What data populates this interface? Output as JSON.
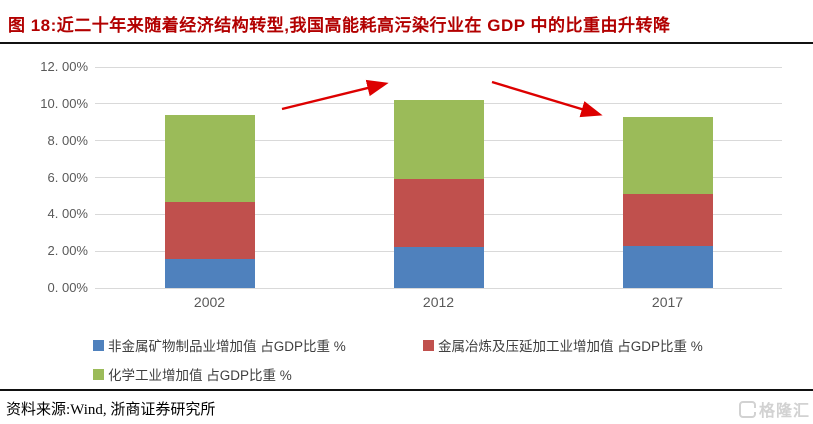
{
  "header": {
    "title": "图 18:近二十年来随着经济结构转型,我国高能耗高污染行业在 GDP 中的比重由升转降"
  },
  "footer": {
    "source_label": "资料来源:Wind, 浙商证券研究所",
    "logo_text": "格隆汇"
  },
  "colors": {
    "title_red": "#b20000",
    "arrow_red": "#dd0000",
    "axis_text": "#595959",
    "gridline": "#d9d9d9"
  },
  "chart_data": {
    "type": "bar",
    "stacked": true,
    "title": "",
    "xlabel": "",
    "ylabel": "",
    "categories": [
      "2002",
      "2012",
      "2017"
    ],
    "series": [
      {
        "name": "非金属矿物制品业增加值 占GDP比重 %",
        "color": "#4f81bd",
        "values": [
          1.55,
          2.2,
          2.3
        ]
      },
      {
        "name": "金属冶炼及压延加工业增加值 占GDP比重 %",
        "color": "#c0504d",
        "values": [
          3.1,
          3.7,
          2.8
        ]
      },
      {
        "name": "化学工业增加值 占GDP比重 %",
        "color": "#9bbb59",
        "values": [
          4.75,
          4.3,
          4.2
        ]
      }
    ],
    "stack_totals": [
      9.4,
      10.2,
      9.3
    ],
    "ylim": [
      0,
      12
    ],
    "ytick_step": 2,
    "ytick_labels": [
      "0. 00%",
      "2. 00%",
      "4. 00%",
      "6. 00%",
      "8. 00%",
      "10. 00%",
      "12. 00%"
    ],
    "grid": true,
    "legend_position": "bottom",
    "annotations": [
      {
        "type": "arrow",
        "direction": "up",
        "meaning": "share rises from 2002 to 2012"
      },
      {
        "type": "arrow",
        "direction": "down",
        "meaning": "share falls from 2012 to 2017"
      }
    ]
  }
}
